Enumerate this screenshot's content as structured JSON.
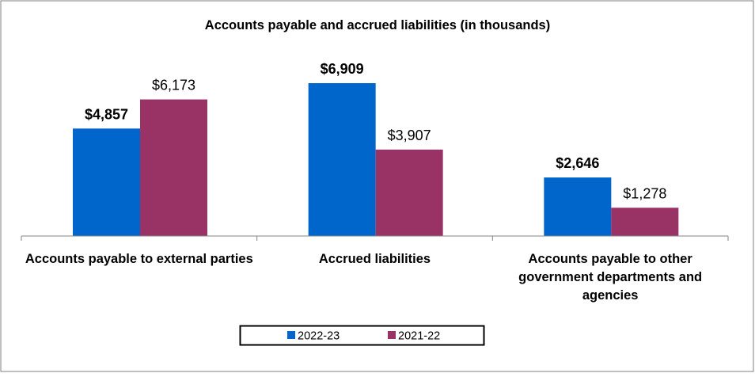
{
  "chart_data": {
    "type": "bar",
    "title": "Accounts payable and accrued liabilities (in thousands)",
    "categories": [
      "Accounts payable to external parties",
      "Accrued liabilities",
      "Accounts payable to other government departments and agencies"
    ],
    "series": [
      {
        "name": "2022-23",
        "values": [
          4857,
          6909,
          2646
        ],
        "labels": [
          "$4,857",
          "$6,909",
          "$2,646"
        ],
        "color": "#0066CC",
        "label_bold": true
      },
      {
        "name": "2021-22",
        "values": [
          6173,
          3907,
          1278
        ],
        "labels": [
          "$6,173",
          "$3,907",
          "$1,278"
        ],
        "color": "#993366",
        "label_bold": false
      }
    ],
    "ylim": [
      0,
      8000
    ],
    "grid": false,
    "y_axis_visible": false,
    "legend_placement": "bottom"
  }
}
